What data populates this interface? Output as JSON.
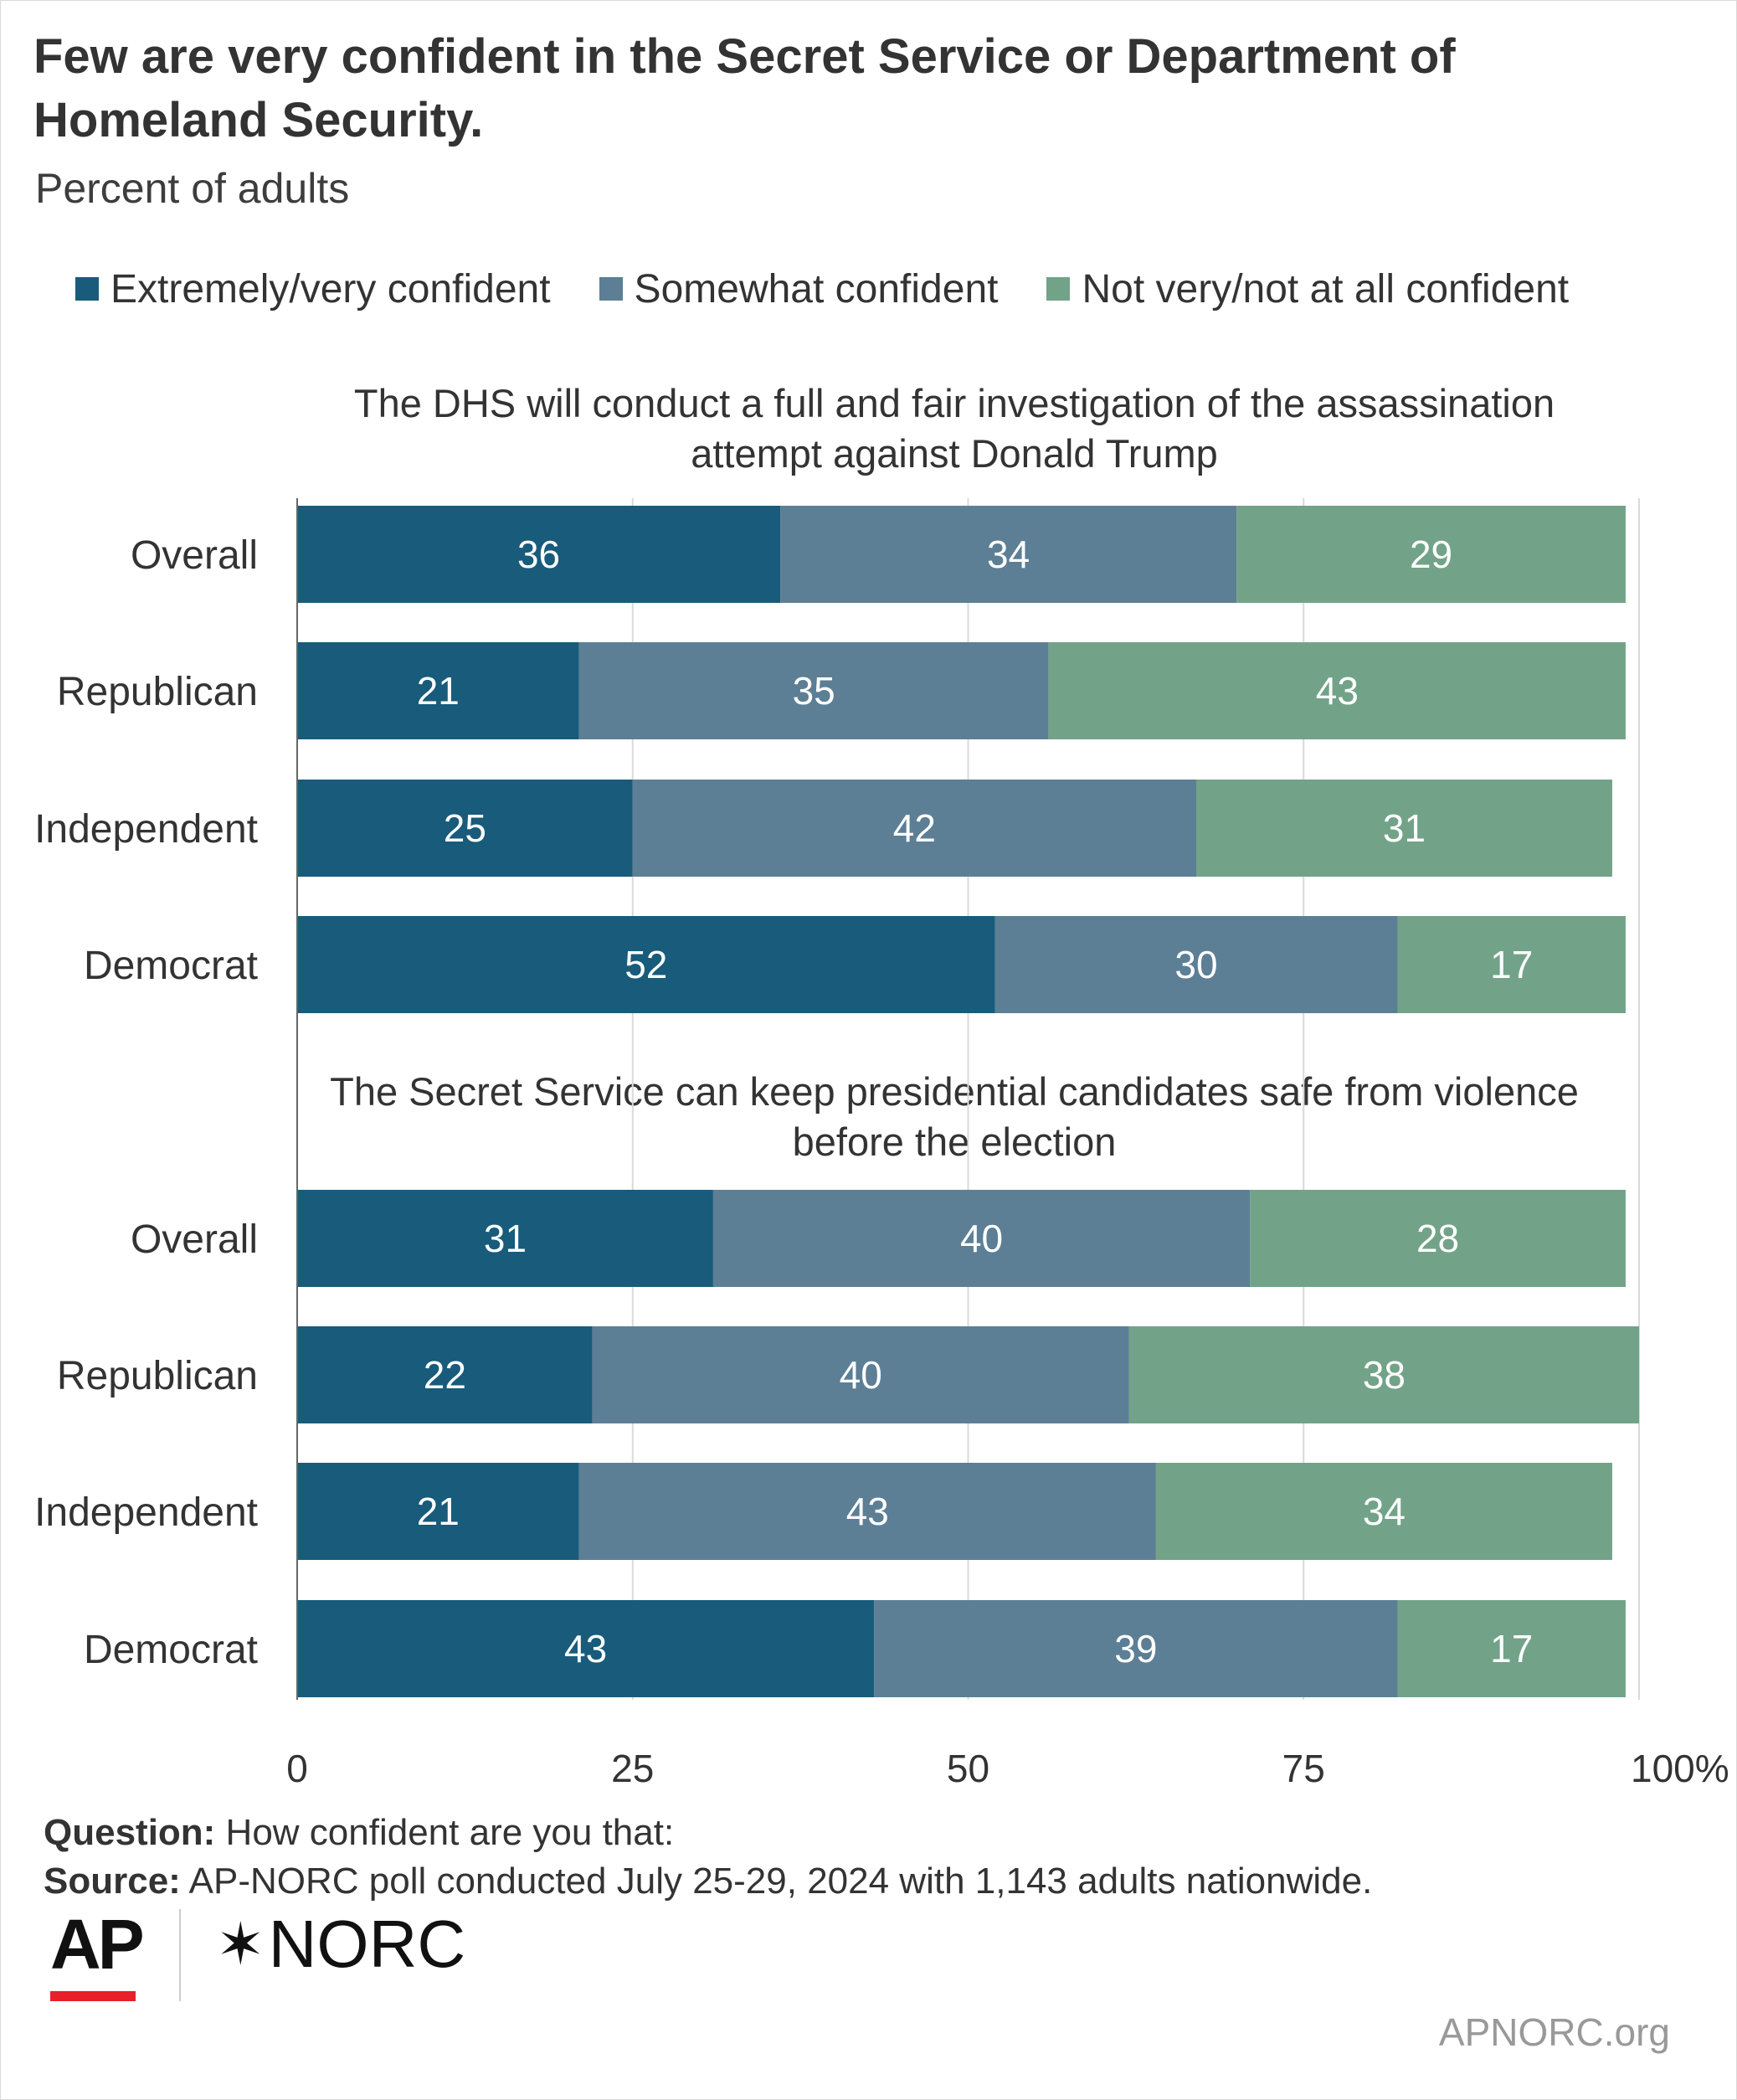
{
  "header": {
    "title": "Few are very confident in the Secret Service or Department of Homeland Security.",
    "subtitle": "Percent of adults"
  },
  "legend": [
    {
      "label": "Extremely/very confident",
      "color": "#185b7b"
    },
    {
      "label": "Somewhat confident",
      "color": "#5c7f95"
    },
    {
      "label": "Not very/not at all confident",
      "color": "#72a388"
    }
  ],
  "chart_data": {
    "type": "bar",
    "orientation": "horizontal",
    "stacked": true,
    "xlim": [
      0,
      100
    ],
    "x_ticks": [
      "0",
      "25",
      "50",
      "75",
      "100%"
    ],
    "series_names": [
      "Extremely/very confident",
      "Somewhat confident",
      "Not very/not at all confident"
    ],
    "panels": [
      {
        "title": "The DHS will conduct a full and fair investigation of the assassination attempt against Donald Trump",
        "categories": [
          "Overall",
          "Republican",
          "Independent",
          "Democrat"
        ],
        "series": [
          {
            "name": "Extremely/very confident",
            "values": [
              36,
              21,
              25,
              52
            ]
          },
          {
            "name": "Somewhat confident",
            "values": [
              34,
              35,
              42,
              30
            ]
          },
          {
            "name": "Not very/not at all confident",
            "values": [
              29,
              43,
              31,
              17
            ]
          }
        ]
      },
      {
        "title": "The Secret Service can keep presidential candidates safe from violence before the election",
        "categories": [
          "Overall",
          "Republican",
          "Independent",
          "Democrat"
        ],
        "series": [
          {
            "name": "Extremely/very confident",
            "values": [
              31,
              22,
              21,
              43
            ]
          },
          {
            "name": "Somewhat confident",
            "values": [
              40,
              40,
              43,
              39
            ]
          },
          {
            "name": "Not very/not at all confident",
            "values": [
              28,
              38,
              34,
              17
            ]
          }
        ]
      }
    ]
  },
  "footer": {
    "question_label": "Question:",
    "question_text": " How confident are you that:",
    "source_label": "Source:",
    "source_text": " AP-NORC poll conducted July 25-29, 2024 with 1,143 adults nationwide."
  },
  "branding": {
    "ap_logo": "AP",
    "norc_logo": "NORC",
    "norc_mark": "✶",
    "site": "APNORC.org"
  }
}
